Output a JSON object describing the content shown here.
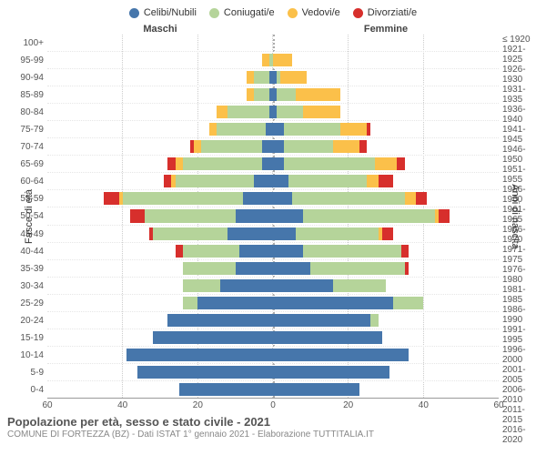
{
  "chart": {
    "type": "population-pyramid",
    "title": "Popolazione per età, sesso e stato civile - 2021",
    "subtitle": "COMUNE DI FORTEZZA (BZ) - Dati ISTAT 1° gennaio 2021 - Elaborazione TUTTITALIA.IT",
    "legend": [
      {
        "label": "Celibi/Nubili",
        "color": "#4676ab"
      },
      {
        "label": "Coniugati/e",
        "color": "#b5d49a"
      },
      {
        "label": "Vedovi/e",
        "color": "#fbc04a"
      },
      {
        "label": "Divorziati/e",
        "color": "#d72f2c"
      }
    ],
    "colors": {
      "celibi": "#4676ab",
      "coniugati": "#b5d49a",
      "vedovi": "#fbc04a",
      "divorziati": "#d72f2c",
      "grid": "#cccccc",
      "bg": "#ffffff"
    },
    "side_labels": {
      "left": "Maschi",
      "right": "Femmine"
    },
    "yaxis_titles": {
      "left": "Fasce di età",
      "right": "Anni di nascita"
    },
    "age_labels": [
      "100+",
      "95-99",
      "90-94",
      "85-89",
      "80-84",
      "75-79",
      "70-74",
      "65-69",
      "60-64",
      "55-59",
      "50-54",
      "45-49",
      "40-44",
      "35-39",
      "30-34",
      "25-29",
      "20-24",
      "15-19",
      "10-14",
      "5-9",
      "0-4"
    ],
    "birth_labels": [
      "≤ 1920",
      "1921-1925",
      "1926-1930",
      "1931-1935",
      "1936-1940",
      "1941-1945",
      "1946-1950",
      "1951-1955",
      "1956-1960",
      "1961-1965",
      "1966-1970",
      "1971-1975",
      "1976-1980",
      "1981-1985",
      "1986-1990",
      "1991-1995",
      "1996-2000",
      "2001-2005",
      "2006-2010",
      "2011-2015",
      "2016-2020"
    ],
    "xmax": 60,
    "xticks": [
      60,
      40,
      20,
      0,
      20,
      40,
      60
    ],
    "data": [
      {
        "age": "100+",
        "m": {
          "cel": 0,
          "con": 0,
          "ved": 0,
          "div": 0
        },
        "f": {
          "cel": 0,
          "con": 0,
          "ved": 0,
          "div": 0
        }
      },
      {
        "age": "95-99",
        "m": {
          "cel": 0,
          "con": 1,
          "ved": 2,
          "div": 0
        },
        "f": {
          "cel": 0,
          "con": 0,
          "ved": 5,
          "div": 0
        }
      },
      {
        "age": "90-94",
        "m": {
          "cel": 1,
          "con": 4,
          "ved": 2,
          "div": 0
        },
        "f": {
          "cel": 1,
          "con": 1,
          "ved": 7,
          "div": 0
        }
      },
      {
        "age": "85-89",
        "m": {
          "cel": 1,
          "con": 4,
          "ved": 2,
          "div": 0
        },
        "f": {
          "cel": 1,
          "con": 5,
          "ved": 12,
          "div": 0
        }
      },
      {
        "age": "80-84",
        "m": {
          "cel": 1,
          "con": 11,
          "ved": 3,
          "div": 0
        },
        "f": {
          "cel": 1,
          "con": 7,
          "ved": 10,
          "div": 0
        }
      },
      {
        "age": "75-79",
        "m": {
          "cel": 2,
          "con": 13,
          "ved": 2,
          "div": 0
        },
        "f": {
          "cel": 3,
          "con": 15,
          "ved": 7,
          "div": 1
        }
      },
      {
        "age": "70-74",
        "m": {
          "cel": 3,
          "con": 16,
          "ved": 2,
          "div": 1
        },
        "f": {
          "cel": 3,
          "con": 13,
          "ved": 7,
          "div": 2
        }
      },
      {
        "age": "65-69",
        "m": {
          "cel": 3,
          "con": 21,
          "ved": 2,
          "div": 2
        },
        "f": {
          "cel": 3,
          "con": 24,
          "ved": 6,
          "div": 2
        }
      },
      {
        "age": "60-64",
        "m": {
          "cel": 5,
          "con": 21,
          "ved": 1,
          "div": 2
        },
        "f": {
          "cel": 4,
          "con": 21,
          "ved": 3,
          "div": 4
        }
      },
      {
        "age": "55-59",
        "m": {
          "cel": 8,
          "con": 32,
          "ved": 1,
          "div": 4
        },
        "f": {
          "cel": 5,
          "con": 30,
          "ved": 3,
          "div": 3
        }
      },
      {
        "age": "50-54",
        "m": {
          "cel": 10,
          "con": 24,
          "ved": 0,
          "div": 4
        },
        "f": {
          "cel": 8,
          "con": 35,
          "ved": 1,
          "div": 3
        }
      },
      {
        "age": "45-49",
        "m": {
          "cel": 12,
          "con": 20,
          "ved": 0,
          "div": 1
        },
        "f": {
          "cel": 6,
          "con": 22,
          "ved": 1,
          "div": 3
        }
      },
      {
        "age": "40-44",
        "m": {
          "cel": 9,
          "con": 15,
          "ved": 0,
          "div": 2
        },
        "f": {
          "cel": 8,
          "con": 26,
          "ved": 0,
          "div": 2
        }
      },
      {
        "age": "35-39",
        "m": {
          "cel": 10,
          "con": 14,
          "ved": 0,
          "div": 0
        },
        "f": {
          "cel": 10,
          "con": 25,
          "ved": 0,
          "div": 1
        }
      },
      {
        "age": "30-34",
        "m": {
          "cel": 14,
          "con": 10,
          "ved": 0,
          "div": 0
        },
        "f": {
          "cel": 16,
          "con": 14,
          "ved": 0,
          "div": 0
        }
      },
      {
        "age": "25-29",
        "m": {
          "cel": 20,
          "con": 4,
          "ved": 0,
          "div": 0
        },
        "f": {
          "cel": 32,
          "con": 8,
          "ved": 0,
          "div": 0
        }
      },
      {
        "age": "20-24",
        "m": {
          "cel": 28,
          "con": 0,
          "ved": 0,
          "div": 0
        },
        "f": {
          "cel": 26,
          "con": 2,
          "ved": 0,
          "div": 0
        }
      },
      {
        "age": "15-19",
        "m": {
          "cel": 32,
          "con": 0,
          "ved": 0,
          "div": 0
        },
        "f": {
          "cel": 29,
          "con": 0,
          "ved": 0,
          "div": 0
        }
      },
      {
        "age": "10-14",
        "m": {
          "cel": 39,
          "con": 0,
          "ved": 0,
          "div": 0
        },
        "f": {
          "cel": 36,
          "con": 0,
          "ved": 0,
          "div": 0
        }
      },
      {
        "age": "5-9",
        "m": {
          "cel": 36,
          "con": 0,
          "ved": 0,
          "div": 0
        },
        "f": {
          "cel": 31,
          "con": 0,
          "ved": 0,
          "div": 0
        }
      },
      {
        "age": "0-4",
        "m": {
          "cel": 25,
          "con": 0,
          "ved": 0,
          "div": 0
        },
        "f": {
          "cel": 23,
          "con": 0,
          "ved": 0,
          "div": 0
        }
      }
    ]
  }
}
